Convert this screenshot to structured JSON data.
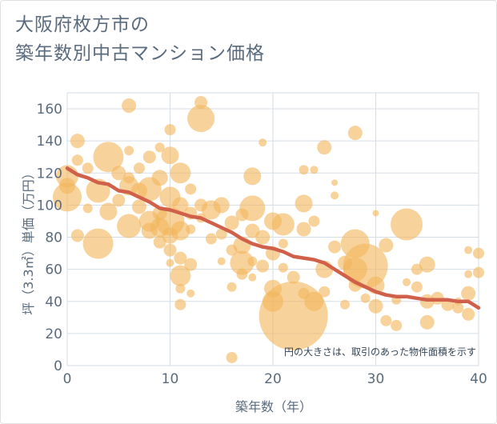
{
  "title_line1": "大阪府枚方市の",
  "title_line2": "築年数別中古マンション価格",
  "chart_data": {
    "type": "scatter",
    "title": "大阪府枚方市の築年数別中古マンション価格",
    "xlabel": "築年数（年）",
    "ylabel": "坪（3.3㎡）単価（万円）",
    "xlim": [
      0,
      40
    ],
    "ylim": [
      0,
      170
    ],
    "xticks": [
      0,
      10,
      20,
      30,
      40
    ],
    "yticks": [
      0,
      20,
      40,
      60,
      80,
      100,
      120,
      140,
      160
    ],
    "grid": true,
    "note": "円の大きさは、取引のあった物件面積を示す",
    "colors": {
      "bubble": "#f2b65e",
      "trend": "#d0604a",
      "grid": "#d5dde6",
      "text": "#5a6b7d"
    },
    "series": [
      {
        "kind": "bubble",
        "points": [
          [
            0,
            105,
            18
          ],
          [
            0,
            118,
            14
          ],
          [
            0,
            112,
            10
          ],
          [
            1,
            140,
            9
          ],
          [
            1,
            128,
            7
          ],
          [
            1,
            81,
            8
          ],
          [
            2,
            123,
            7
          ],
          [
            2,
            98,
            6
          ],
          [
            3,
            76,
            19
          ],
          [
            3,
            109,
            15
          ],
          [
            4,
            130,
            19
          ],
          [
            4,
            96,
            11
          ],
          [
            5,
            103,
            8
          ],
          [
            5,
            120,
            9
          ],
          [
            6,
            162,
            9
          ],
          [
            6,
            134,
            6
          ],
          [
            6,
            117,
            7
          ],
          [
            6,
            87,
            15
          ],
          [
            6,
            112,
            12
          ],
          [
            7,
            109,
            10
          ],
          [
            7,
            123,
            7
          ],
          [
            7,
            99,
            9
          ],
          [
            8,
            110,
            15
          ],
          [
            8,
            90,
            13
          ],
          [
            8,
            130,
            8
          ],
          [
            8,
            84,
            10
          ],
          [
            9,
            95,
            9
          ],
          [
            9,
            77,
            8
          ],
          [
            9,
            117,
            10
          ],
          [
            9,
            86,
            12
          ],
          [
            9,
            136,
            6
          ],
          [
            10,
            147,
            7
          ],
          [
            10,
            131,
            11
          ],
          [
            10,
            105,
            13
          ],
          [
            10,
            90,
            18
          ],
          [
            10,
            81,
            10
          ],
          [
            10,
            72,
            8
          ],
          [
            10,
            64,
            5
          ],
          [
            11,
            120,
            13
          ],
          [
            11,
            100,
            10
          ],
          [
            11,
            84,
            12
          ],
          [
            11,
            67,
            8
          ],
          [
            11,
            56,
            13
          ],
          [
            11,
            48,
            6
          ],
          [
            11,
            38,
            7
          ],
          [
            12,
            110,
            7
          ],
          [
            12,
            95,
            8
          ],
          [
            12,
            85,
            6
          ],
          [
            12,
            63,
            8
          ],
          [
            12,
            45,
            5
          ],
          [
            13,
            154,
            17
          ],
          [
            13,
            164,
            8
          ],
          [
            13,
            100,
            8
          ],
          [
            13,
            92,
            6
          ],
          [
            14,
            97,
            12
          ],
          [
            14,
            79,
            7
          ],
          [
            15,
            100,
            10
          ],
          [
            15,
            82,
            7
          ],
          [
            15,
            65,
            5
          ],
          [
            16,
            89,
            9
          ],
          [
            16,
            72,
            7
          ],
          [
            16,
            49,
            6
          ],
          [
            16,
            5,
            7
          ],
          [
            17,
            94,
            8
          ],
          [
            17,
            75,
            11
          ],
          [
            17,
            64,
            15
          ],
          [
            17,
            57,
            7
          ],
          [
            18,
            118,
            11
          ],
          [
            18,
            98,
            16
          ],
          [
            18,
            84,
            9
          ],
          [
            18,
            65,
            6
          ],
          [
            18,
            55,
            5
          ],
          [
            19,
            139,
            5
          ],
          [
            19,
            80,
            9
          ],
          [
            19,
            62,
            8
          ],
          [
            20,
            90,
            11
          ],
          [
            20,
            70,
            9
          ],
          [
            20,
            48,
            11
          ],
          [
            20,
            40,
            13
          ],
          [
            21,
            88,
            14
          ],
          [
            21,
            76,
            6
          ],
          [
            21,
            61,
            6
          ],
          [
            22,
            31,
            43
          ],
          [
            22,
            55,
            8
          ],
          [
            23,
            122,
            6
          ],
          [
            23,
            101,
            11
          ],
          [
            23,
            85,
            9
          ],
          [
            23,
            45,
            7
          ],
          [
            24,
            122,
            5
          ],
          [
            24,
            90,
            7
          ],
          [
            24,
            40,
            12
          ],
          [
            25,
            136,
            9
          ],
          [
            25,
            60,
            11
          ],
          [
            25,
            46,
            7
          ],
          [
            26,
            114,
            4
          ],
          [
            26,
            106,
            5
          ],
          [
            26,
            74,
            8
          ],
          [
            27,
            64,
            9
          ],
          [
            27,
            38,
            6
          ],
          [
            28,
            145,
            9
          ],
          [
            28,
            76,
            18
          ],
          [
            28,
            60,
            15
          ],
          [
            28,
            50,
            8
          ],
          [
            29,
            62,
            28
          ],
          [
            29,
            42,
            6
          ],
          [
            30,
            95,
            4
          ],
          [
            30,
            50,
            11
          ],
          [
            30,
            37,
            9
          ],
          [
            31,
            75,
            9
          ],
          [
            31,
            28,
            7
          ],
          [
            32,
            41,
            6
          ],
          [
            32,
            25,
            7
          ],
          [
            33,
            88,
            20
          ],
          [
            33,
            52,
            5
          ],
          [
            34,
            60,
            7
          ],
          [
            34,
            49,
            7
          ],
          [
            35,
            63,
            10
          ],
          [
            35,
            40,
            9
          ],
          [
            35,
            27,
            9
          ],
          [
            36,
            42,
            8
          ],
          [
            37,
            38,
            8
          ],
          [
            38,
            40,
            5
          ],
          [
            38,
            36,
            7
          ],
          [
            39,
            72,
            5
          ],
          [
            39,
            57,
            5
          ],
          [
            39,
            45,
            9
          ],
          [
            39,
            32,
            8
          ],
          [
            40,
            70,
            7
          ],
          [
            40,
            58,
            7
          ]
        ]
      },
      {
        "kind": "trend",
        "x": [
          0,
          1,
          2,
          3,
          4,
          5,
          6,
          7,
          8,
          9,
          10,
          11,
          12,
          13,
          14,
          15,
          16,
          17,
          18,
          19,
          20,
          21,
          22,
          23,
          24,
          25,
          26,
          27,
          28,
          29,
          30,
          31,
          32,
          33,
          34,
          35,
          36,
          37,
          38,
          39,
          40
        ],
        "y": [
          123,
          119,
          117,
          114,
          113,
          109,
          108,
          105,
          102,
          98,
          97,
          95,
          93,
          92,
          89,
          86,
          83,
          79,
          76,
          74,
          73,
          71,
          68,
          67,
          66,
          64,
          60,
          56,
          52,
          49,
          46,
          44,
          43,
          43,
          42,
          41,
          41,
          41,
          40,
          40,
          36
        ]
      }
    ]
  }
}
